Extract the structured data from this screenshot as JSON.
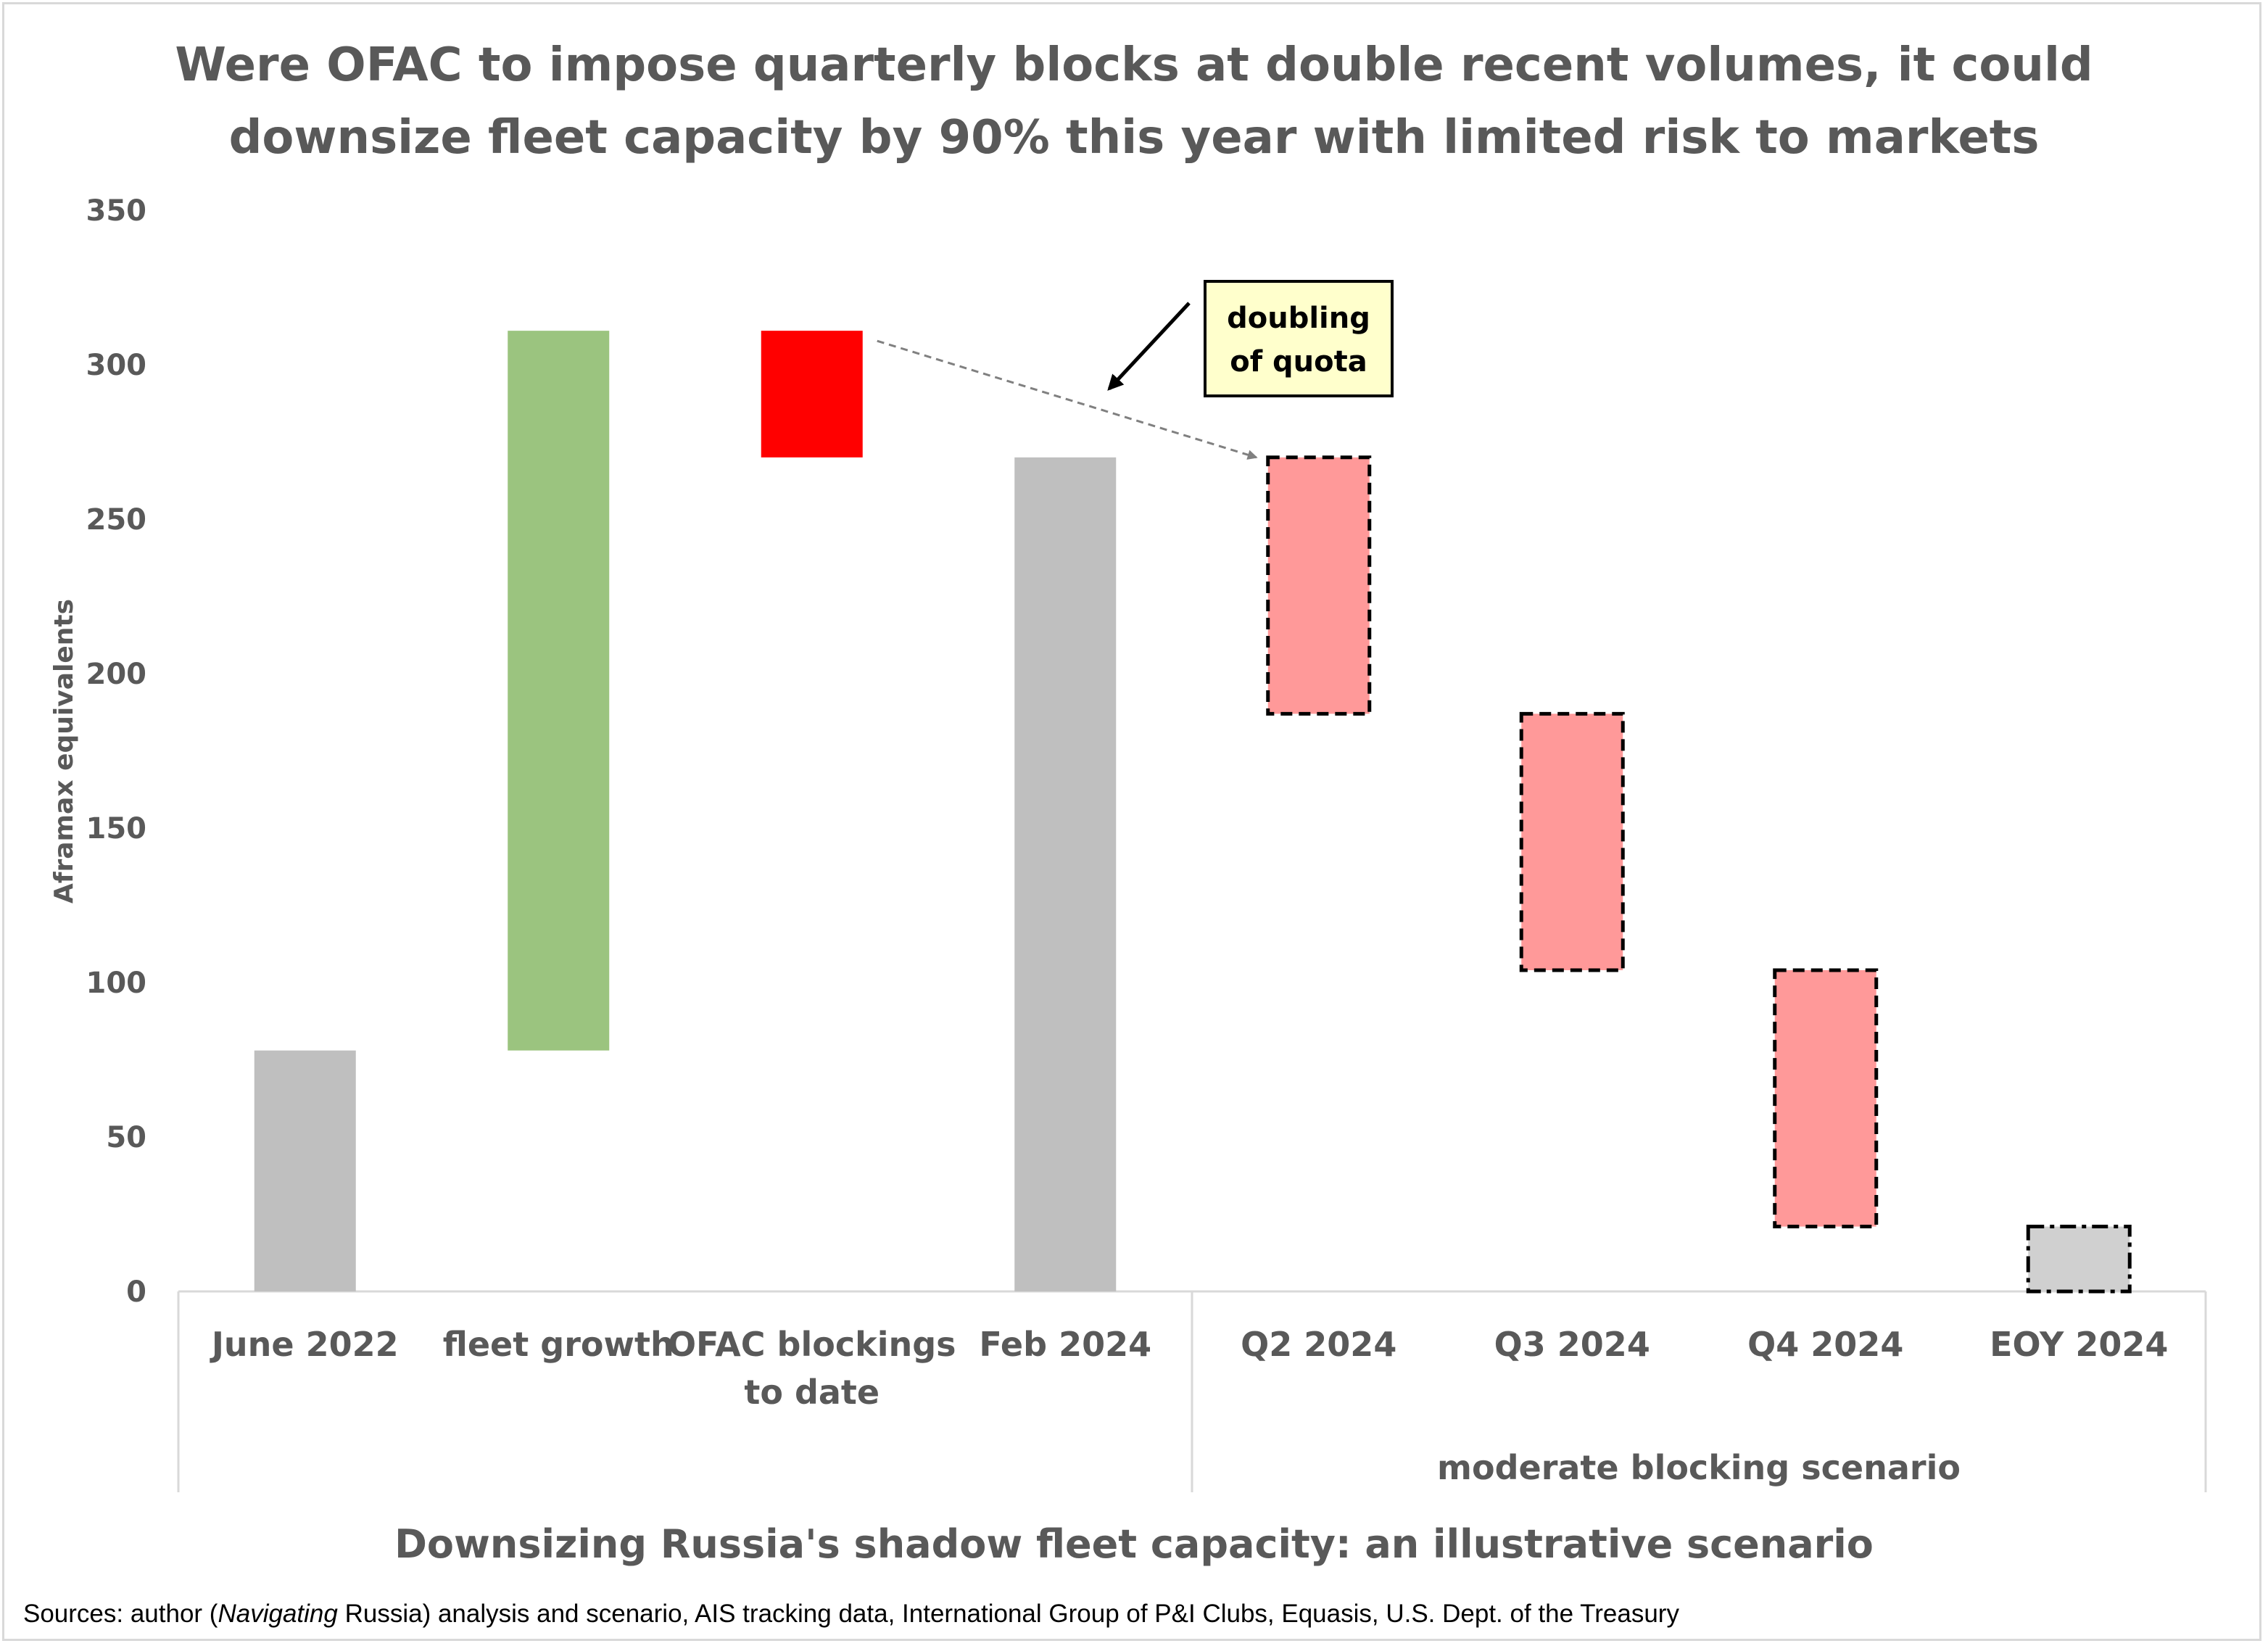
{
  "chart_data": {
    "type": "bar",
    "subtype": "waterfall",
    "title": "Were OFAC to impose quarterly blocks at double recent volumes, it could downsize fleet capacity by 90% this year with limited risk to markets",
    "subtitle": "Downsizing Russia's shadow fleet capacity: an illustrative scenario",
    "ylabel": "Aframax equivalents",
    "ylim": [
      0,
      350
    ],
    "yticks": [
      0,
      50,
      100,
      150,
      200,
      250,
      300,
      350
    ],
    "grid": false,
    "categories": [
      "June 2022",
      "fleet growth",
      "OFAC blockings to date",
      "Feb 2024",
      "Q2 2024",
      "Q3 2024",
      "Q4 2024",
      "EOY 2024"
    ],
    "category_lines": [
      [
        "June 2022"
      ],
      [
        "fleet growth"
      ],
      [
        "OFAC blockings",
        "to date"
      ],
      [
        "Feb 2024"
      ],
      [
        "Q2 2024"
      ],
      [
        "Q3 2024"
      ],
      [
        "Q4 2024"
      ],
      [
        "EOY 2024"
      ]
    ],
    "bars": [
      {
        "category": "June 2022",
        "kind": "total",
        "low": 0,
        "high": 78,
        "color": "#bfbfbf",
        "style": "solid"
      },
      {
        "category": "fleet growth",
        "kind": "increase",
        "low": 78,
        "high": 311,
        "color": "#9bc47f",
        "style": "solid"
      },
      {
        "category": "OFAC blockings to date",
        "kind": "decrease",
        "low": 270,
        "high": 311,
        "color": "#ff0000",
        "style": "solid"
      },
      {
        "category": "Feb 2024",
        "kind": "total",
        "low": 0,
        "high": 270,
        "color": "#bfbfbf",
        "style": "solid"
      },
      {
        "category": "Q2 2024",
        "kind": "decrease",
        "low": 187,
        "high": 270,
        "color": "#ff9999",
        "style": "dashed"
      },
      {
        "category": "Q3 2024",
        "kind": "decrease",
        "low": 104,
        "high": 187,
        "color": "#ff9999",
        "style": "dashed"
      },
      {
        "category": "Q4 2024",
        "kind": "decrease",
        "low": 21,
        "high": 104,
        "color": "#ff9999",
        "style": "dashed"
      },
      {
        "category": "EOY 2024",
        "kind": "total",
        "low": 0,
        "high": 21,
        "color": "#d0d0d0",
        "style": "dashdot"
      }
    ],
    "group_label": "moderate blocking scenario",
    "annotation": {
      "lines": [
        "doubling",
        "of quota"
      ]
    }
  },
  "sources": {
    "prefix": "Sources: author (",
    "italic": "Navigating",
    "suffix": " Russia) analysis and scenario, AIS tracking data, International Group of P&I Clubs, Equasis, U.S. Dept. of the Treasury"
  }
}
